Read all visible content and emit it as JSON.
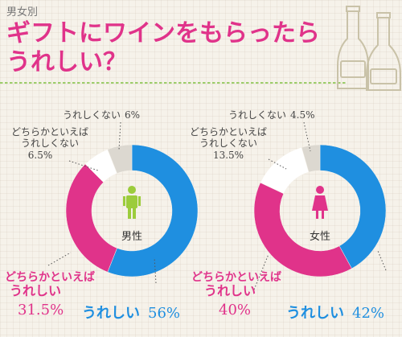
{
  "header": {
    "category": "男女別",
    "title": "ギフトにワインをもらったらうれしい？"
  },
  "colors": {
    "blue": "#1f8fe0",
    "pink": "#e0338a",
    "white": "#ffffff",
    "gray": "#dcd8d0",
    "icon_male": "#9ccc3c",
    "icon_female": "#e0338a"
  },
  "chart_data": [
    {
      "type": "pie",
      "center_label": "男性",
      "series": [
        {
          "label": "うれしい",
          "value": 56,
          "value_text": "56%"
        },
        {
          "label": "どちらかといえばうれしい",
          "value": 31.5,
          "value_text": "31.5%"
        },
        {
          "label": "どちらかといえばうれしくない",
          "value": 6.5,
          "value_text": "6.5%"
        },
        {
          "label": "うれしくない",
          "value": 6,
          "value_text": "6%"
        }
      ]
    },
    {
      "type": "pie",
      "center_label": "女性",
      "series": [
        {
          "label": "うれしい",
          "value": 42,
          "value_text": "42%"
        },
        {
          "label": "どちらかといえばうれしい",
          "value": 40,
          "value_text": "40%"
        },
        {
          "label": "どちらかといえばうれしくない",
          "value": 13.5,
          "value_text": "13.5%"
        },
        {
          "label": "うれしくない",
          "value": 4.5,
          "value_text": "4.5%"
        }
      ]
    }
  ],
  "labels": {
    "male": {
      "no": "うれしくない",
      "no_pct": "6%",
      "somewhat_no_1": "どちらかといえば",
      "somewhat_no_2": "うれしくない",
      "somewhat_no_pct": "6.5%",
      "somewhat_yes_1": "どちらかといえば",
      "somewhat_yes_2": "うれしい",
      "somewhat_yes_pct": "31.5%",
      "yes": "うれしい",
      "yes_pct": "56%"
    },
    "female": {
      "no": "うれしくない",
      "no_pct": "4.5%",
      "somewhat_no_1": "どちらかといえば",
      "somewhat_no_2": "うれしくない",
      "somewhat_no_pct": "13.5%",
      "somewhat_yes_1": "どちらかといえば",
      "somewhat_yes_2": "うれしい",
      "somewhat_yes_pct": "40%",
      "yes": "うれしい",
      "yes_pct": "42%"
    }
  }
}
